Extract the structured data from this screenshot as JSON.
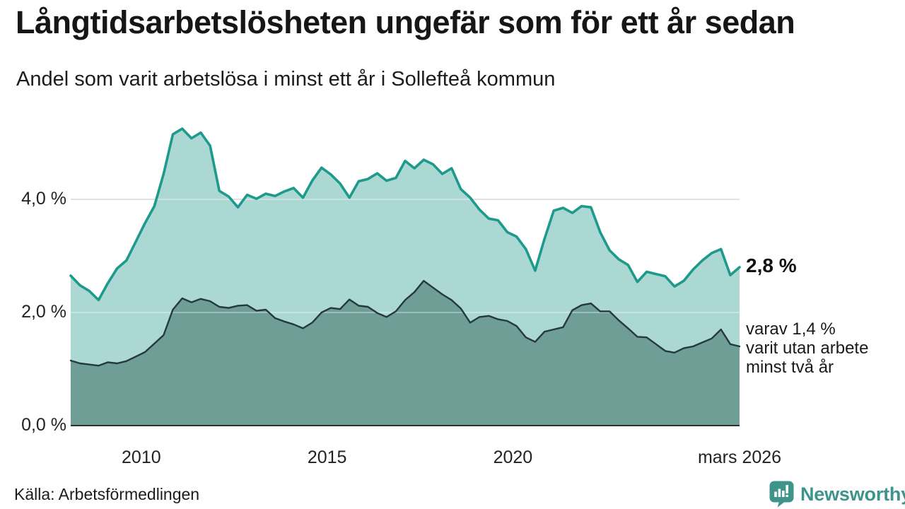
{
  "header": {
    "title": "Långtidsarbetslösheten ungefär som för ett år sedan",
    "subtitle": "Andel som varit arbetslösa i minst ett år i Sollefteå kommun"
  },
  "chart_data": {
    "type": "area",
    "title": "Långtidsarbetslösheten ungefär som för ett år sedan",
    "subtitle": "Andel som varit arbetslösa i minst ett år i Sollefteå kommun",
    "unit": "%",
    "xlim": [
      2008.1,
      2026.1
    ],
    "ylim": [
      0,
      5.3
    ],
    "x_start": 2008.1,
    "x_step": 0.25,
    "grid_values": [
      2,
      4
    ],
    "y_ticks": [
      {
        "value": 0,
        "label": "0,0 %"
      },
      {
        "value": 2,
        "label": "2,0 %"
      },
      {
        "value": 4,
        "label": "4,0 %"
      }
    ],
    "x_ticks": [
      {
        "value": 2010,
        "label": "2010"
      },
      {
        "value": 2015,
        "label": "2015"
      },
      {
        "value": 2020,
        "label": "2020"
      },
      {
        "value": 2026.1,
        "label": "mars 2026"
      }
    ],
    "series": [
      {
        "name": "Arbetslösa minst ett år",
        "end_value_label": "2,8 %",
        "values": [
          2.65,
          2.48,
          2.38,
          2.22,
          2.52,
          2.78,
          2.92,
          3.25,
          3.58,
          3.88,
          4.45,
          5.15,
          5.25,
          5.08,
          5.18,
          4.95,
          4.15,
          4.05,
          3.86,
          4.08,
          4.01,
          4.1,
          4.06,
          4.14,
          4.2,
          4.03,
          4.33,
          4.56,
          4.44,
          4.28,
          4.03,
          4.32,
          4.36,
          4.46,
          4.33,
          4.38,
          4.68,
          4.55,
          4.7,
          4.62,
          4.45,
          4.55,
          4.18,
          4.03,
          3.82,
          3.66,
          3.63,
          3.42,
          3.34,
          3.12,
          2.74,
          3.3,
          3.8,
          3.85,
          3.76,
          3.88,
          3.86,
          3.42,
          3.1,
          2.94,
          2.84,
          2.54,
          2.72,
          2.68,
          2.64,
          2.46,
          2.56,
          2.76,
          2.92,
          3.05,
          3.12,
          2.66,
          2.8
        ]
      },
      {
        "name": "Arbetslösa minst två år",
        "end_value_label": "1,4 %",
        "values": [
          1.15,
          1.1,
          1.08,
          1.06,
          1.12,
          1.1,
          1.14,
          1.22,
          1.3,
          1.45,
          1.6,
          2.05,
          2.25,
          2.18,
          2.24,
          2.2,
          2.1,
          2.08,
          2.12,
          2.13,
          2.03,
          2.05,
          1.9,
          1.84,
          1.79,
          1.72,
          1.82,
          2.0,
          2.08,
          2.06,
          2.23,
          2.12,
          2.1,
          1.99,
          1.92,
          2.02,
          2.22,
          2.36,
          2.56,
          2.44,
          2.32,
          2.22,
          2.07,
          1.82,
          1.92,
          1.94,
          1.88,
          1.85,
          1.76,
          1.56,
          1.48,
          1.66,
          1.7,
          1.74,
          2.04,
          2.13,
          2.16,
          2.02,
          2.02,
          1.86,
          1.72,
          1.57,
          1.56,
          1.44,
          1.32,
          1.29,
          1.37,
          1.4,
          1.47,
          1.54,
          1.7,
          1.44,
          1.4
        ]
      }
    ],
    "colors": {
      "total_line": "#1d9a8c",
      "total_fill": "#abd8d2",
      "two_year_line": "#253840",
      "two_year_fill": "#6f9e97",
      "grid": "#bfbfbf",
      "grid_overlay": "rgba(255,255,255,0.45)",
      "baseline": "#2f2f2f",
      "logo": "#3e948b"
    },
    "legend_position": "none",
    "grid": true
  },
  "annotations": {
    "total_label": "2,8 %",
    "two_year_label": "varav 1,4 %\nvarit utan arbete\nminst två år"
  },
  "footer": {
    "source": "Källa: Arbetsförmedlingen",
    "logo_text": "Newsworthy"
  }
}
